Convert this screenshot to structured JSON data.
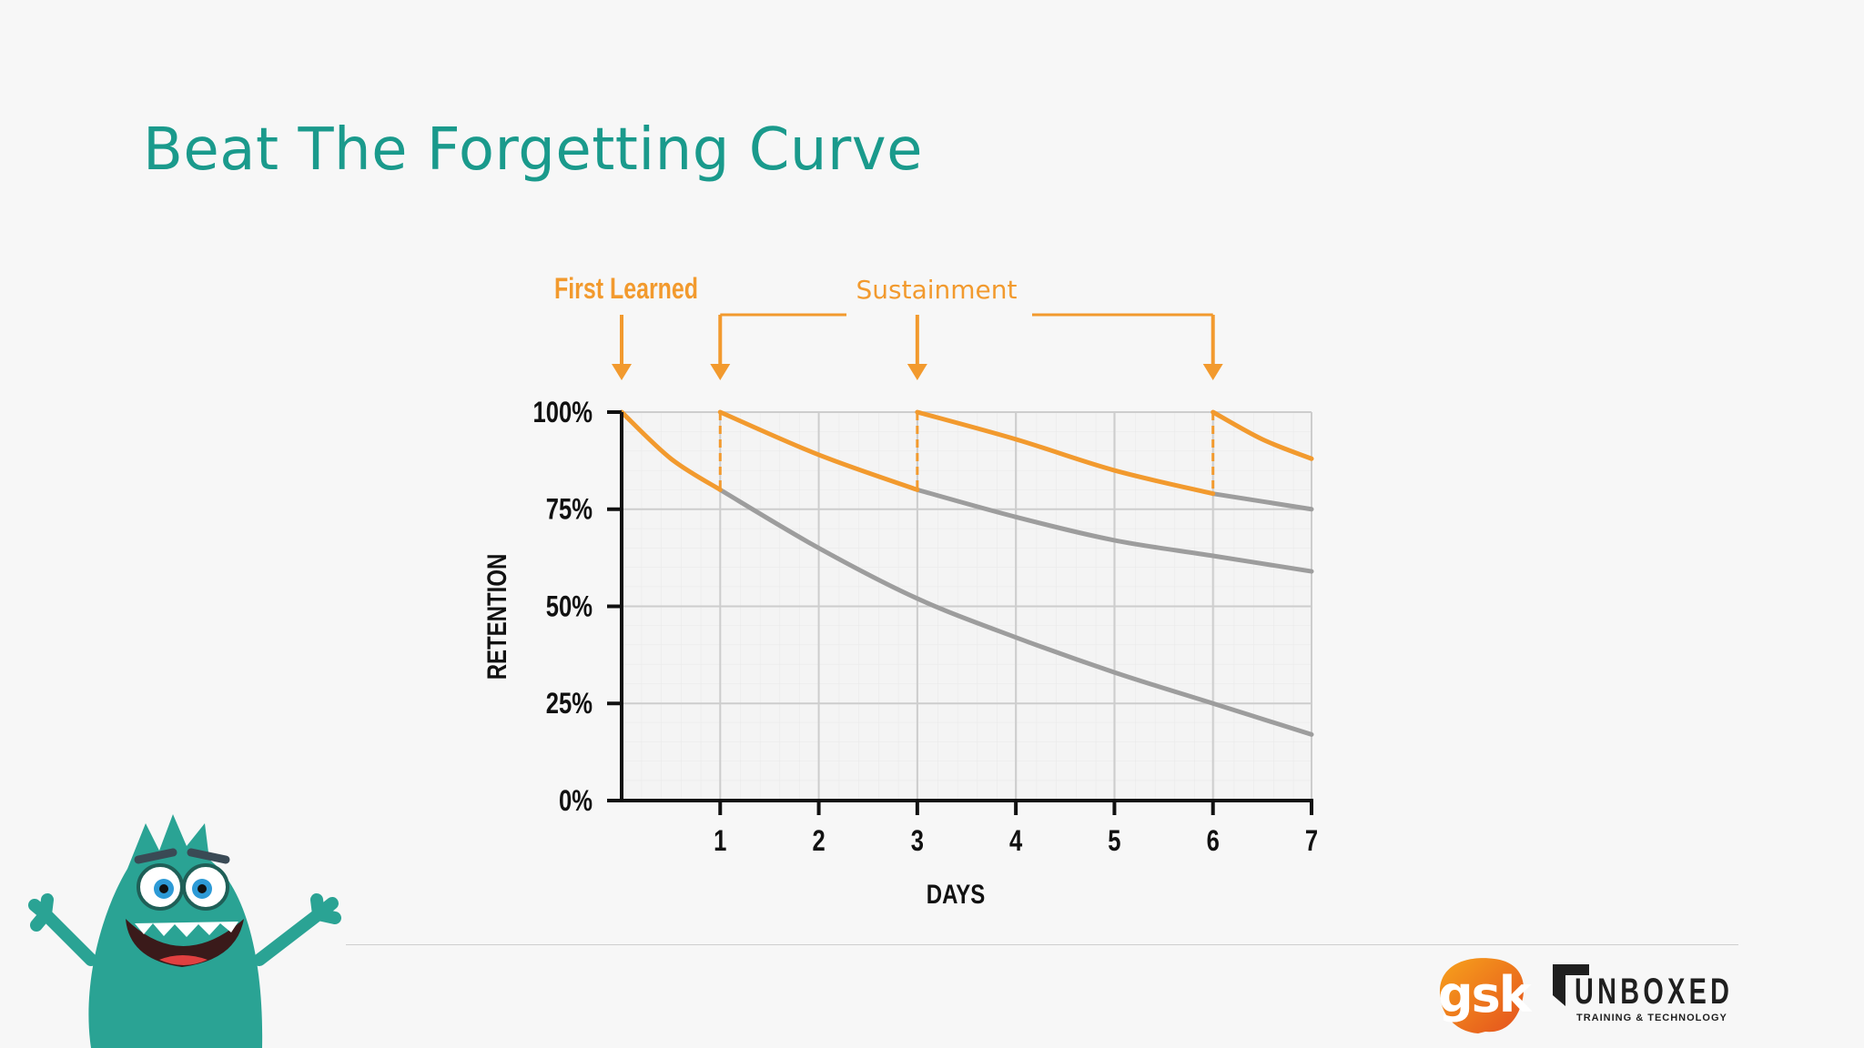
{
  "slide": {
    "title": "Beat The Forgetting Curve"
  },
  "annotations": {
    "first_learned": "First Learned",
    "sustainment": "Sustainment"
  },
  "logos": {
    "gsk": "gsk",
    "unboxed": "UNBOXED",
    "unboxed_tagline": "TRAINING & TECHNOLOGY"
  },
  "colors": {
    "title": "#1a9a8c",
    "orange": "#f29a2e",
    "gray": "#9d9d9d",
    "mascot": "#2aa394"
  },
  "chart_data": {
    "type": "line",
    "title": "",
    "xlabel": "DAYS",
    "ylabel": "RETENTION",
    "xlim": [
      0,
      7
    ],
    "ylim": [
      0,
      100
    ],
    "x_ticks": [
      "1",
      "2",
      "3",
      "4",
      "5",
      "6",
      "7"
    ],
    "y_ticks": [
      "0%",
      "25%",
      "50%",
      "75%",
      "100%"
    ],
    "grid": true,
    "review_days": [
      1,
      3,
      6
    ],
    "series": [
      {
        "color": "orange",
        "x": [
          0,
          0.5,
          1
        ],
        "y": [
          100,
          88,
          80
        ]
      },
      {
        "color": "orange",
        "x": [
          1,
          2,
          3
        ],
        "y": [
          100,
          89,
          80
        ]
      },
      {
        "color": "orange",
        "x": [
          3,
          4,
          5,
          6
        ],
        "y": [
          100,
          93,
          85,
          79
        ]
      },
      {
        "color": "orange",
        "x": [
          6,
          6.5,
          7
        ],
        "y": [
          100,
          93,
          88
        ]
      },
      {
        "color": "gray",
        "x": [
          1,
          2,
          3,
          4,
          5,
          6,
          7
        ],
        "y": [
          80,
          65,
          52,
          42,
          33,
          25,
          17
        ]
      },
      {
        "color": "gray",
        "x": [
          3,
          4,
          5,
          6,
          7
        ],
        "y": [
          80,
          73,
          67,
          63,
          59
        ]
      },
      {
        "color": "gray",
        "x": [
          6,
          7
        ],
        "y": [
          79,
          75
        ]
      }
    ]
  }
}
